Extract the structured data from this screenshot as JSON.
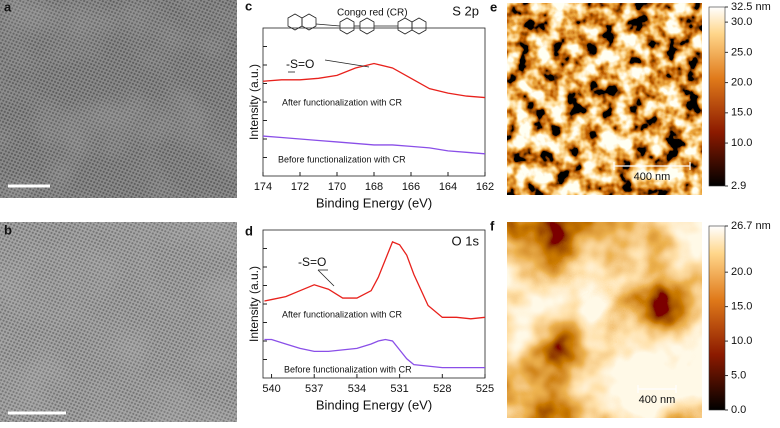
{
  "images": [
    {
      "label": "a"
    },
    {
      "label": "b"
    },
    {
      "label": "e",
      "scale_bar": "400 nm",
      "colorbar": {
        "range": [
          2.9,
          32.5
        ],
        "ticks": [
          {
            "value": 32.5,
            "label": "32.5 nm"
          },
          {
            "value": 30,
            "label": "30.0"
          },
          {
            "value": 25,
            "label": "25.0"
          },
          {
            "value": 20,
            "label": "20.0"
          },
          {
            "value": 15,
            "label": "15.0"
          },
          {
            "value": 10,
            "label": "10.0"
          },
          {
            "value": 2.9,
            "label": "2.9"
          }
        ]
      }
    },
    {
      "label": "f",
      "scale_bar": "400 nm",
      "colorbar": {
        "range": [
          0,
          26.7
        ],
        "ticks": [
          {
            "value": 26.7,
            "label": "26.7 nm"
          },
          {
            "value": 20,
            "label": "20.0"
          },
          {
            "value": 15,
            "label": "15.0"
          },
          {
            "value": 10,
            "label": "10.0"
          },
          {
            "value": 5,
            "label": "5.0"
          },
          {
            "value": 0,
            "label": "0.0"
          }
        ]
      }
    }
  ],
  "chart_data": [
    {
      "type": "line",
      "panel": "c",
      "title": "S 2p",
      "xlabel": "Binding Energy (eV)",
      "ylabel": "Intensity (a.u.)",
      "annotations": [
        "-S=O",
        "Congo red (CR)"
      ],
      "x": [
        174,
        173,
        172,
        171,
        170,
        169,
        168,
        167,
        166,
        165,
        164,
        163,
        162
      ],
      "series": [
        {
          "name": "After functionalization with CR",
          "color": "#e8211c",
          "values": [
            6.4,
            6.5,
            6.5,
            6.6,
            6.8,
            7.3,
            7.6,
            7.3,
            6.6,
            5.9,
            5.6,
            5.4,
            5.3
          ]
        },
        {
          "name": "Before functionalization with CR",
          "color": "#8a4fe8",
          "values": [
            2.7,
            2.6,
            2.5,
            2.4,
            2.3,
            2.2,
            2.1,
            2.1,
            2.0,
            1.9,
            1.7,
            1.6,
            1.5
          ]
        }
      ],
      "xlim": [
        174,
        162
      ],
      "xticks": [
        174,
        172,
        170,
        168,
        166,
        164,
        162
      ],
      "ylim": [
        0,
        10
      ]
    },
    {
      "type": "line",
      "panel": "d",
      "title": "O 1s",
      "xlabel": "Binding Energy (eV)",
      "ylabel": "Intensity (a.u.)",
      "annotations": [
        "-S=O"
      ],
      "x": [
        540.5,
        540,
        539,
        538,
        537,
        536,
        535,
        534,
        533,
        532.5,
        532,
        531.5,
        531,
        530.5,
        530,
        529,
        528,
        527,
        526,
        525
      ],
      "series": [
        {
          "name": "After functionalization with CR",
          "color": "#e8211c",
          "values": [
            5.2,
            5.3,
            5.5,
            5.9,
            6.3,
            6.0,
            5.4,
            5.4,
            5.9,
            6.8,
            8.0,
            9.2,
            9.0,
            8.3,
            7.0,
            4.9,
            4.1,
            4.1,
            4.0,
            4.1
          ]
        },
        {
          "name": "Before functionalization with CR",
          "color": "#8a4fe8",
          "values": [
            2.6,
            2.6,
            2.3,
            2.0,
            1.8,
            1.8,
            1.9,
            2.0,
            2.3,
            2.5,
            2.6,
            2.5,
            1.9,
            1.3,
            0.9,
            0.8,
            0.7,
            0.7,
            0.7,
            0.7
          ]
        }
      ],
      "xlim": [
        540.6,
        525
      ],
      "xticks": [
        540,
        537,
        534,
        531,
        528,
        525
      ],
      "ylim": [
        0,
        10
      ]
    }
  ]
}
